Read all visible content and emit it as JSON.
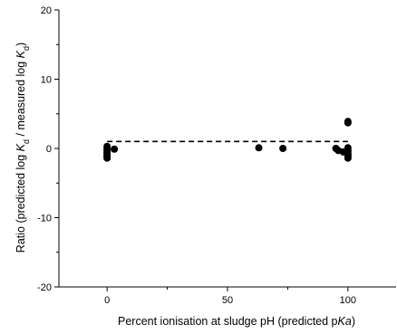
{
  "chart_data": {
    "type": "scatter",
    "title": "",
    "xlabel_parts": [
      {
        "t": "Percent ionisation at sludge pH (predicted p",
        "i": false
      },
      {
        "t": "Ka",
        "i": true
      },
      {
        "t": ")",
        "i": false
      }
    ],
    "ylabel_parts": [
      {
        "t": "Ratio (predicted log ",
        "i": false,
        "sub": false
      },
      {
        "t": "K",
        "i": true,
        "sub": false
      },
      {
        "t": "d",
        "i": false,
        "sub": true
      },
      {
        "t": " / measured  log ",
        "i": false,
        "sub": false
      },
      {
        "t": "K",
        "i": true,
        "sub": false
      },
      {
        "t": "d",
        "i": false,
        "sub": true
      },
      {
        "t": ")",
        "i": false,
        "sub": false
      }
    ],
    "xlim": [
      -20,
      120
    ],
    "ylim": [
      -20,
      20
    ],
    "x_ticks": [
      0,
      50,
      100
    ],
    "x_tick_labels": [
      "0",
      "50",
      "100"
    ],
    "y_ticks": [
      -20,
      -10,
      0,
      10,
      20
    ],
    "y_tick_labels": [
      "-20",
      "-10",
      "0",
      "10",
      "20"
    ],
    "reference_line": {
      "x": [
        0,
        100
      ],
      "y": [
        1,
        1
      ],
      "style": "dashed"
    },
    "points": {
      "x": [
        0,
        0,
        0,
        0,
        0,
        0,
        0,
        0,
        0,
        3,
        63,
        73,
        95,
        96,
        98,
        100,
        100,
        100,
        100,
        100,
        100,
        100,
        100,
        100
      ],
      "y": [
        0.3,
        0.0,
        -0.2,
        -0.4,
        -0.6,
        -0.8,
        -1.0,
        -1.2,
        -1.4,
        -0.1,
        0.1,
        0.0,
        0.0,
        -0.3,
        -0.5,
        0.1,
        -0.2,
        -0.5,
        -0.8,
        -1.0,
        -1.2,
        -1.4,
        3.7,
        3.9
      ]
    },
    "grid": false,
    "legend": "none"
  }
}
